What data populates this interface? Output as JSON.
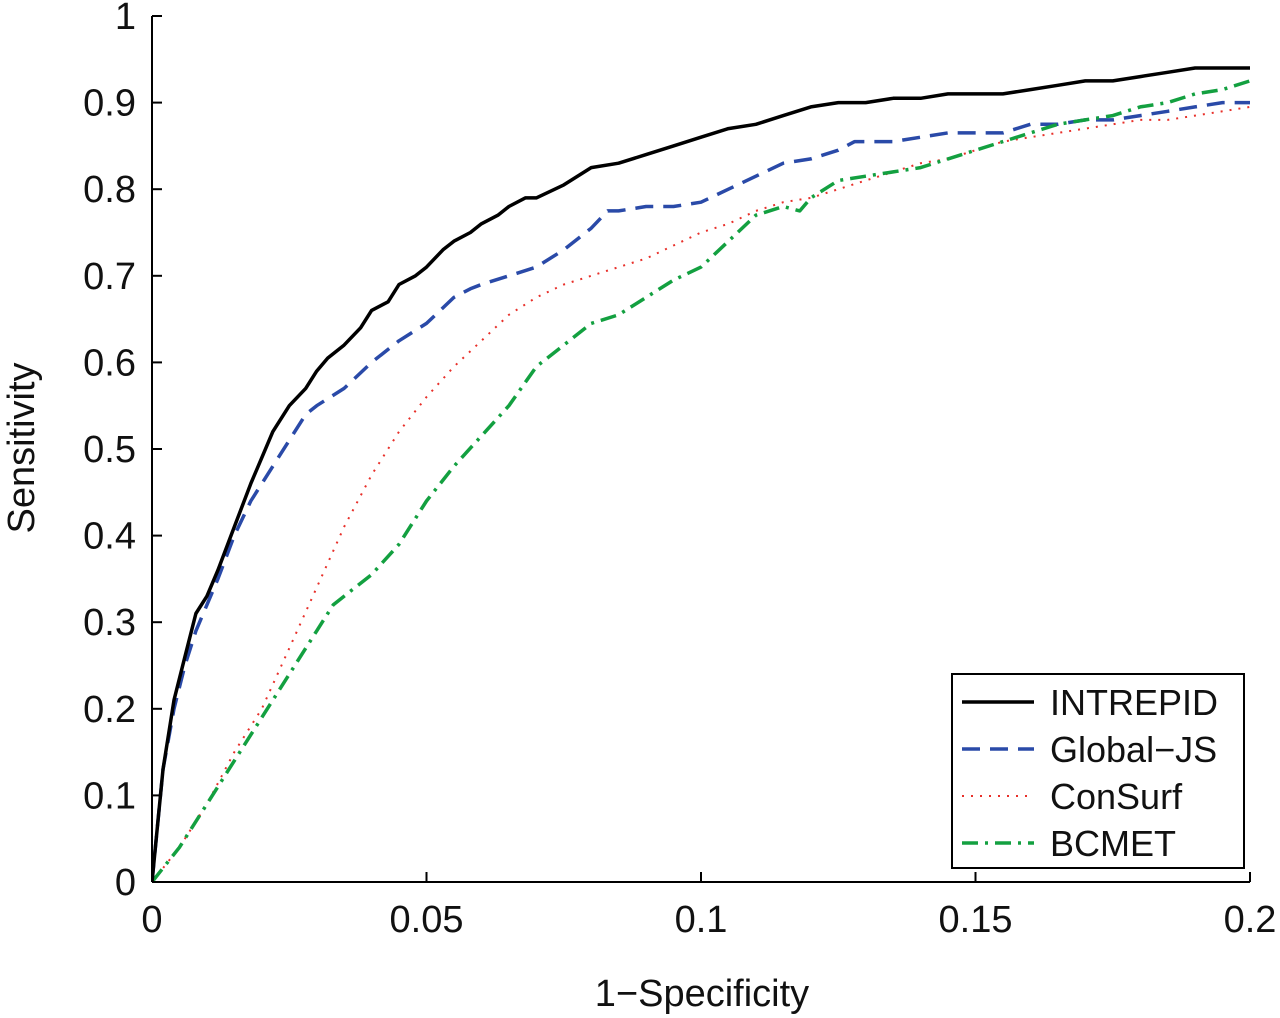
{
  "chart_data": {
    "type": "line",
    "title": "",
    "xlabel": "1−Specificity",
    "ylabel": "Sensitivity",
    "xlim": [
      0,
      0.2
    ],
    "ylim": [
      0,
      1
    ],
    "grid": false,
    "legend_position": "bottom-right",
    "x_ticks": [
      "0",
      "0.05",
      "0.1",
      "0.15",
      "0.2"
    ],
    "y_ticks": [
      "0",
      "0.1",
      "0.2",
      "0.3",
      "0.4",
      "0.5",
      "0.6",
      "0.7",
      "0.8",
      "0.9",
      "1"
    ],
    "series": [
      {
        "name": "INTREPID",
        "color": "#000000",
        "style": "solid",
        "x": [
          0,
          0.002,
          0.004,
          0.006,
          0.008,
          0.01,
          0.012,
          0.015,
          0.018,
          0.02,
          0.022,
          0.025,
          0.028,
          0.03,
          0.032,
          0.035,
          0.038,
          0.04,
          0.043,
          0.045,
          0.048,
          0.05,
          0.053,
          0.055,
          0.058,
          0.06,
          0.063,
          0.065,
          0.068,
          0.07,
          0.075,
          0.08,
          0.085,
          0.09,
          0.095,
          0.1,
          0.105,
          0.11,
          0.115,
          0.12,
          0.125,
          0.13,
          0.135,
          0.14,
          0.145,
          0.15,
          0.155,
          0.16,
          0.165,
          0.17,
          0.175,
          0.18,
          0.185,
          0.19,
          0.195,
          0.2
        ],
        "y": [
          0,
          0.13,
          0.21,
          0.26,
          0.31,
          0.33,
          0.36,
          0.41,
          0.46,
          0.49,
          0.52,
          0.55,
          0.57,
          0.59,
          0.605,
          0.62,
          0.64,
          0.66,
          0.67,
          0.69,
          0.7,
          0.71,
          0.73,
          0.74,
          0.75,
          0.76,
          0.77,
          0.78,
          0.79,
          0.79,
          0.805,
          0.825,
          0.83,
          0.84,
          0.85,
          0.86,
          0.87,
          0.875,
          0.885,
          0.895,
          0.9,
          0.9,
          0.905,
          0.905,
          0.91,
          0.91,
          0.91,
          0.915,
          0.92,
          0.925,
          0.925,
          0.93,
          0.935,
          0.94,
          0.94,
          0.94
        ]
      },
      {
        "name": "Global−JS",
        "color": "#2a4aa8",
        "style": "dashed",
        "x": [
          0,
          0.002,
          0.004,
          0.006,
          0.008,
          0.01,
          0.012,
          0.015,
          0.018,
          0.02,
          0.022,
          0.025,
          0.028,
          0.03,
          0.035,
          0.04,
          0.045,
          0.05,
          0.055,
          0.058,
          0.06,
          0.065,
          0.07,
          0.075,
          0.08,
          0.083,
          0.085,
          0.09,
          0.095,
          0.1,
          0.105,
          0.11,
          0.115,
          0.12,
          0.125,
          0.128,
          0.13,
          0.135,
          0.14,
          0.145,
          0.15,
          0.155,
          0.16,
          0.165,
          0.17,
          0.175,
          0.18,
          0.185,
          0.19,
          0.195,
          0.2
        ],
        "y": [
          0,
          0.13,
          0.2,
          0.25,
          0.29,
          0.32,
          0.35,
          0.4,
          0.44,
          0.46,
          0.48,
          0.51,
          0.54,
          0.55,
          0.57,
          0.6,
          0.625,
          0.645,
          0.675,
          0.685,
          0.69,
          0.7,
          0.71,
          0.73,
          0.755,
          0.775,
          0.775,
          0.78,
          0.78,
          0.785,
          0.8,
          0.815,
          0.83,
          0.835,
          0.845,
          0.855,
          0.855,
          0.855,
          0.86,
          0.865,
          0.865,
          0.865,
          0.875,
          0.875,
          0.88,
          0.88,
          0.885,
          0.89,
          0.895,
          0.9,
          0.9
        ]
      },
      {
        "name": "ConSurf",
        "color": "#e8302a",
        "style": "dotted",
        "x": [
          0,
          0.005,
          0.01,
          0.015,
          0.02,
          0.025,
          0.03,
          0.035,
          0.04,
          0.045,
          0.05,
          0.055,
          0.06,
          0.065,
          0.07,
          0.075,
          0.08,
          0.085,
          0.09,
          0.095,
          0.1,
          0.105,
          0.11,
          0.115,
          0.12,
          0.125,
          0.13,
          0.135,
          0.14,
          0.145,
          0.15,
          0.155,
          0.16,
          0.165,
          0.17,
          0.175,
          0.18,
          0.185,
          0.19,
          0.195,
          0.2
        ],
        "y": [
          0,
          0.04,
          0.09,
          0.15,
          0.2,
          0.27,
          0.34,
          0.41,
          0.47,
          0.52,
          0.56,
          0.595,
          0.625,
          0.655,
          0.675,
          0.69,
          0.7,
          0.71,
          0.72,
          0.735,
          0.75,
          0.76,
          0.775,
          0.785,
          0.79,
          0.8,
          0.81,
          0.82,
          0.83,
          0.835,
          0.845,
          0.855,
          0.86,
          0.865,
          0.87,
          0.875,
          0.88,
          0.88,
          0.885,
          0.89,
          0.895
        ]
      },
      {
        "name": "BCMET",
        "color": "#13a040",
        "style": "dashdot",
        "x": [
          0,
          0.005,
          0.01,
          0.015,
          0.02,
          0.025,
          0.03,
          0.033,
          0.035,
          0.04,
          0.045,
          0.05,
          0.055,
          0.06,
          0.065,
          0.07,
          0.075,
          0.08,
          0.085,
          0.09,
          0.095,
          0.1,
          0.105,
          0.11,
          0.115,
          0.118,
          0.12,
          0.125,
          0.13,
          0.135,
          0.14,
          0.145,
          0.15,
          0.155,
          0.16,
          0.165,
          0.17,
          0.175,
          0.18,
          0.185,
          0.19,
          0.195,
          0.2
        ],
        "y": [
          0,
          0.04,
          0.09,
          0.14,
          0.19,
          0.24,
          0.29,
          0.32,
          0.33,
          0.355,
          0.39,
          0.44,
          0.48,
          0.515,
          0.55,
          0.595,
          0.62,
          0.645,
          0.655,
          0.675,
          0.695,
          0.71,
          0.74,
          0.77,
          0.78,
          0.775,
          0.79,
          0.81,
          0.815,
          0.82,
          0.825,
          0.835,
          0.845,
          0.855,
          0.865,
          0.875,
          0.88,
          0.885,
          0.895,
          0.9,
          0.91,
          0.915,
          0.925
        ]
      }
    ]
  }
}
